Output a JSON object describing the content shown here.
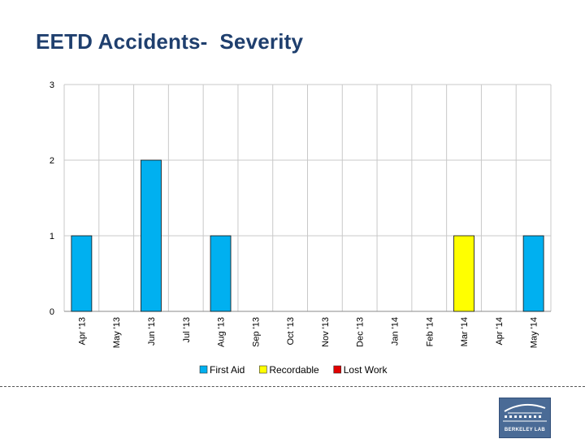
{
  "page": {
    "title": "EETD Accidents-  Severity"
  },
  "logo": {
    "text": "BERKELEY LAB"
  },
  "colors": {
    "first_aid": "#00b0f0",
    "recordable": "#ffff00",
    "lost_work": "#e00000",
    "title": "#1f3f6e",
    "grid": "#c8c8c8"
  },
  "chart_data": {
    "type": "bar",
    "stacked": true,
    "title": "",
    "xlabel": "",
    "ylabel": "",
    "ylim": [
      0,
      3
    ],
    "yticks": [
      0,
      1,
      2,
      3
    ],
    "grid": true,
    "legend_position": "bottom",
    "categories": [
      "Apr '13",
      "May '13",
      "Jun '13",
      "Jul '13",
      "Aug '13",
      "Sep '13",
      "Oct '13",
      "Nov '13",
      "Dec '13",
      "Jan '14",
      "Feb '14",
      "Mar '14",
      "Apr '14",
      "May '14"
    ],
    "series": [
      {
        "name": "First Aid",
        "color": "#00b0f0",
        "values": [
          1,
          0,
          2,
          0,
          1,
          0,
          0,
          0,
          0,
          0,
          0,
          0,
          0,
          1
        ]
      },
      {
        "name": "Recordable",
        "color": "#ffff00",
        "values": [
          0,
          0,
          0,
          0,
          0,
          0,
          0,
          0,
          0,
          0,
          0,
          1,
          0,
          0
        ]
      },
      {
        "name": "Lost Work",
        "color": "#e00000",
        "values": [
          0,
          0,
          0,
          0,
          0,
          0,
          0,
          0,
          0,
          0,
          0,
          0,
          0,
          0
        ]
      }
    ]
  }
}
